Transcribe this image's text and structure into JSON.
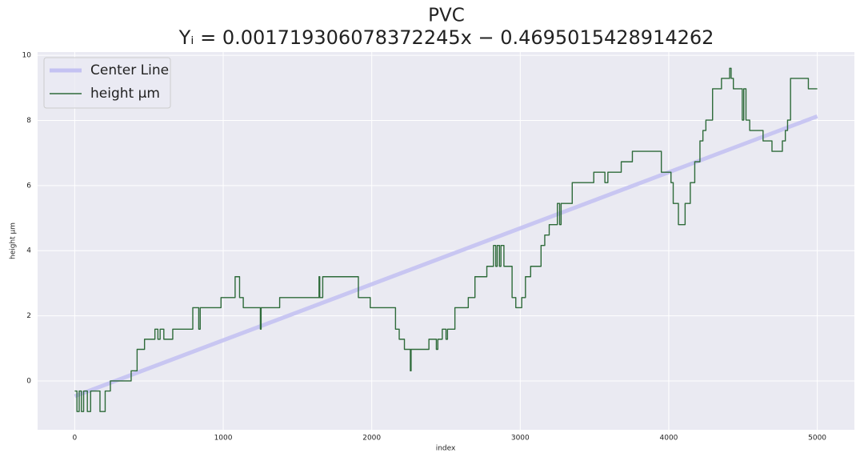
{
  "chart_data": {
    "type": "line",
    "title": "PVC",
    "subtitle": "Yᵢ = 0.001719306078372245x − 0.4695015428914262",
    "x_label": "index",
    "y_label": "height μm",
    "xlim": [
      -250,
      5250
    ],
    "ylim": [
      -1.5,
      10.1
    ],
    "xticks": [
      0,
      1000,
      2000,
      3000,
      4000,
      5000
    ],
    "yticks": [
      0,
      2,
      4,
      6,
      8,
      10
    ],
    "grid": true,
    "legend": "upper left",
    "series": [
      {
        "name": "Center Line",
        "color": "#c4c2f2",
        "x": [
          0,
          5000
        ],
        "values": [
          -0.4695015428914262,
          8.127030849970797
        ]
      },
      {
        "name": "height μm",
        "color": "#2e6b3a",
        "drawstyle": "steps-post",
        "x": [
          0,
          15,
          30,
          45,
          60,
          85,
          107,
          170,
          205,
          240,
          380,
          420,
          470,
          540,
          560,
          575,
          600,
          660,
          795,
          835,
          845,
          985,
          1080,
          1110,
          1135,
          1250,
          1255,
          1380,
          1645,
          1650,
          1670,
          1910,
          1990,
          2160,
          2185,
          2220,
          2260,
          2265,
          2385,
          2435,
          2445,
          2475,
          2500,
          2510,
          2560,
          2650,
          2695,
          2775,
          2820,
          2835,
          2845,
          2860,
          2870,
          2890,
          2945,
          2970,
          3010,
          3035,
          3070,
          3140,
          3165,
          3195,
          3250,
          3265,
          3275,
          3350,
          3495,
          3570,
          3590,
          3680,
          3755,
          3950,
          4015,
          4030,
          4065,
          4110,
          4145,
          4175,
          4210,
          4230,
          4250,
          4295,
          4355,
          4410,
          4420,
          4435,
          4495,
          4505,
          4520,
          4545,
          4635,
          4695,
          4765,
          4785,
          4800,
          4820,
          4940,
          5000
        ],
        "values": [
          -0.31,
          -0.94,
          -0.31,
          -0.94,
          -0.31,
          -0.94,
          -0.31,
          -0.94,
          -0.31,
          0,
          0.31,
          0.97,
          1.28,
          1.59,
          1.28,
          1.59,
          1.28,
          1.59,
          2.25,
          1.59,
          2.25,
          2.56,
          3.2,
          2.56,
          2.25,
          1.59,
          2.25,
          2.56,
          3.2,
          2.56,
          3.2,
          2.56,
          2.25,
          1.59,
          1.28,
          0.97,
          0.31,
          0.97,
          1.28,
          0.97,
          1.28,
          1.59,
          1.28,
          1.59,
          2.25,
          2.56,
          3.2,
          3.52,
          4.16,
          3.52,
          4.16,
          3.52,
          4.16,
          3.52,
          2.56,
          2.25,
          2.56,
          3.2,
          3.52,
          4.16,
          4.48,
          4.8,
          5.45,
          4.8,
          5.45,
          6.09,
          6.41,
          6.09,
          6.41,
          6.73,
          7.05,
          6.41,
          6.09,
          5.45,
          4.8,
          5.45,
          6.09,
          6.73,
          7.37,
          7.69,
          8.01,
          8.97,
          9.29,
          9.6,
          9.29,
          8.97,
          8.01,
          8.97,
          8.01,
          7.69,
          7.37,
          7.05,
          7.37,
          7.69,
          8.01,
          9.29,
          8.97,
          8.97
        ]
      }
    ]
  }
}
